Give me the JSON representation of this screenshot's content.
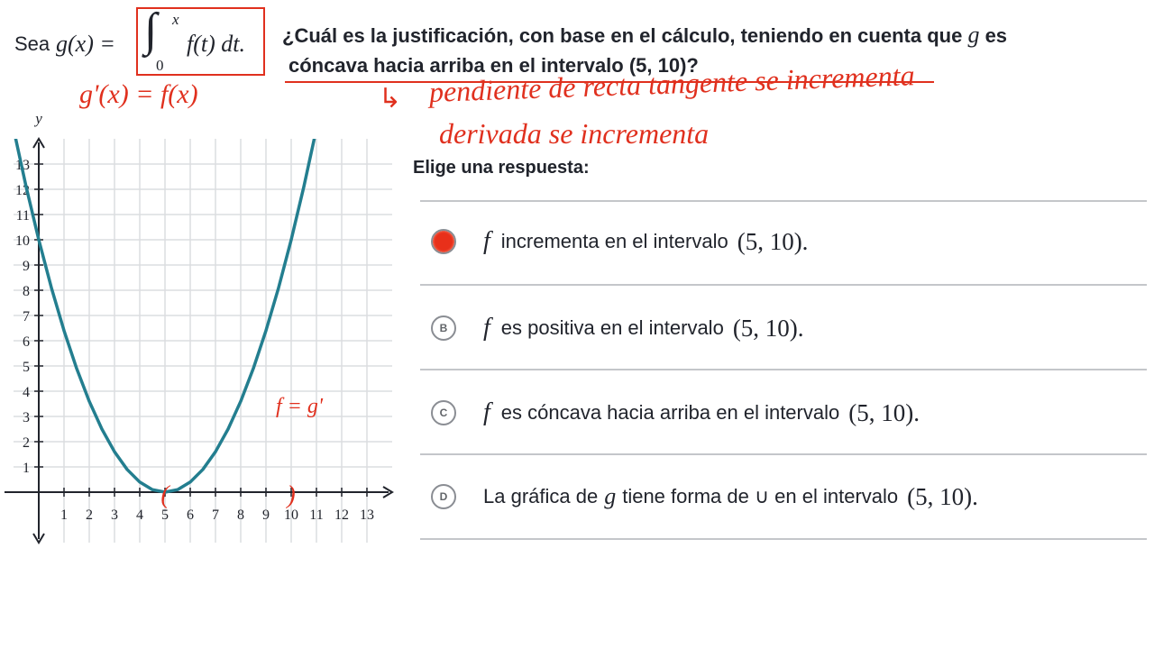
{
  "question": {
    "lead": "Sea",
    "lhs": "g(x) =",
    "integral_sign": "∫",
    "upper": "x",
    "lower": "0",
    "integrand": "f(t) dt.",
    "line1": "¿Cuál es la justificación, con base en el cálculo, teniendo en cuenta que",
    "line1_var": "g",
    "line1_end": "es",
    "line2": "cóncava hacia arriba en el intervalo (5, 10)?"
  },
  "handwriting": {
    "derivative": "g'(x) = f(x)",
    "arrow": "↳",
    "note1": "pendiente de recta tangente se incrementa",
    "note2": "derivada se incrementa"
  },
  "prompt": "Elige una respuesta:",
  "answers": [
    {
      "parts": [
        "f",
        "incrementa en el intervalo",
        "(5, 10)."
      ]
    },
    {
      "letter": "B",
      "parts": [
        "f",
        "es positiva en el intervalo",
        "(5, 10)."
      ]
    },
    {
      "letter": "C",
      "parts": [
        "f",
        "es cóncava hacia arriba en el intervalo",
        "(5, 10)."
      ]
    },
    {
      "letter": "D",
      "parts": [
        "La gráfica de",
        "g",
        "tiene forma de ∪ en el intervalo",
        "(5, 10)."
      ]
    }
  ],
  "chart_data": {
    "type": "line",
    "ylabel": "y",
    "x": [
      -1,
      -0.5,
      0,
      0.5,
      1,
      1.5,
      2,
      2.5,
      3,
      3.5,
      4,
      4.5,
      5,
      5.5,
      6,
      6.5,
      7,
      7.5,
      8,
      8.5,
      9,
      9.5,
      10,
      10.5,
      11
    ],
    "series": [
      {
        "color": "#237e8f",
        "values": [
          14.4,
          12.1,
          10,
          8.1,
          6.4,
          4.9,
          3.6,
          2.5,
          1.6,
          0.9,
          0.4,
          0.1,
          0,
          0.1,
          0.4,
          0.9,
          1.6,
          2.5,
          3.6,
          4.9,
          6.4,
          8.1,
          10,
          12.1,
          14.4
        ]
      }
    ],
    "xlim": [
      -1,
      14
    ],
    "ylim": [
      -2,
      14
    ],
    "xticks": [
      1,
      2,
      3,
      4,
      5,
      6,
      7,
      8,
      9,
      10,
      11,
      12,
      13
    ],
    "yticks": [
      1,
      2,
      3,
      4,
      5,
      6,
      7,
      8,
      9,
      10,
      11,
      12,
      13
    ],
    "grid": true,
    "annotations": [
      "f = g'",
      "(",
      ")"
    ]
  }
}
